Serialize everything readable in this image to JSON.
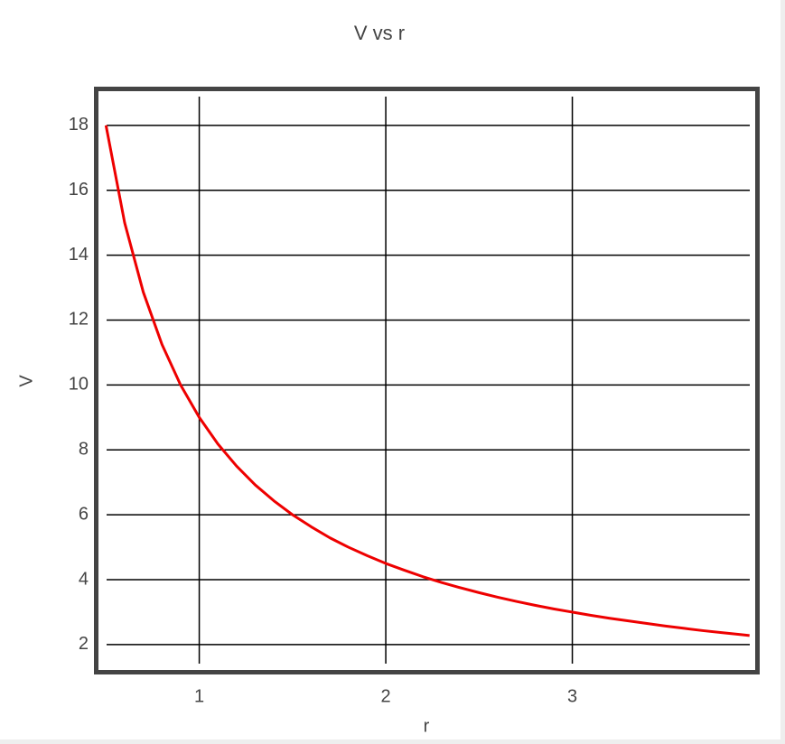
{
  "chart_data": {
    "type": "line",
    "title": "V vs r",
    "x_label": "r",
    "y_label": "V",
    "x": [
      0.5,
      0.6,
      0.7,
      0.8,
      0.9,
      1.0,
      1.1,
      1.2,
      1.3,
      1.4,
      1.5,
      1.6,
      1.7,
      1.8,
      1.9,
      2.0,
      2.1,
      2.2,
      2.3,
      2.4,
      2.5,
      2.6,
      2.7,
      2.8,
      2.9,
      3.0,
      3.1,
      3.2,
      3.3,
      3.4,
      3.5,
      3.6,
      3.7,
      3.8,
      3.9,
      3.95
    ],
    "values": [
      18,
      15,
      12.86,
      11.25,
      10,
      9,
      8.18,
      7.5,
      6.92,
      6.43,
      6,
      5.63,
      5.29,
      5,
      4.74,
      4.5,
      4.29,
      4.09,
      3.91,
      3.75,
      3.6,
      3.46,
      3.33,
      3.21,
      3.1,
      3,
      2.9,
      2.81,
      2.73,
      2.65,
      2.57,
      2.5,
      2.43,
      2.37,
      2.31,
      2.28
    ],
    "color": "#ee0000",
    "xlim": [
      0.45,
      3.99
    ],
    "xticks": [
      1,
      2,
      3
    ],
    "ylim": [
      1.19,
      19.08
    ],
    "yticks": [
      2,
      4,
      6,
      8,
      10,
      12,
      14,
      16,
      18
    ],
    "grid": true
  }
}
